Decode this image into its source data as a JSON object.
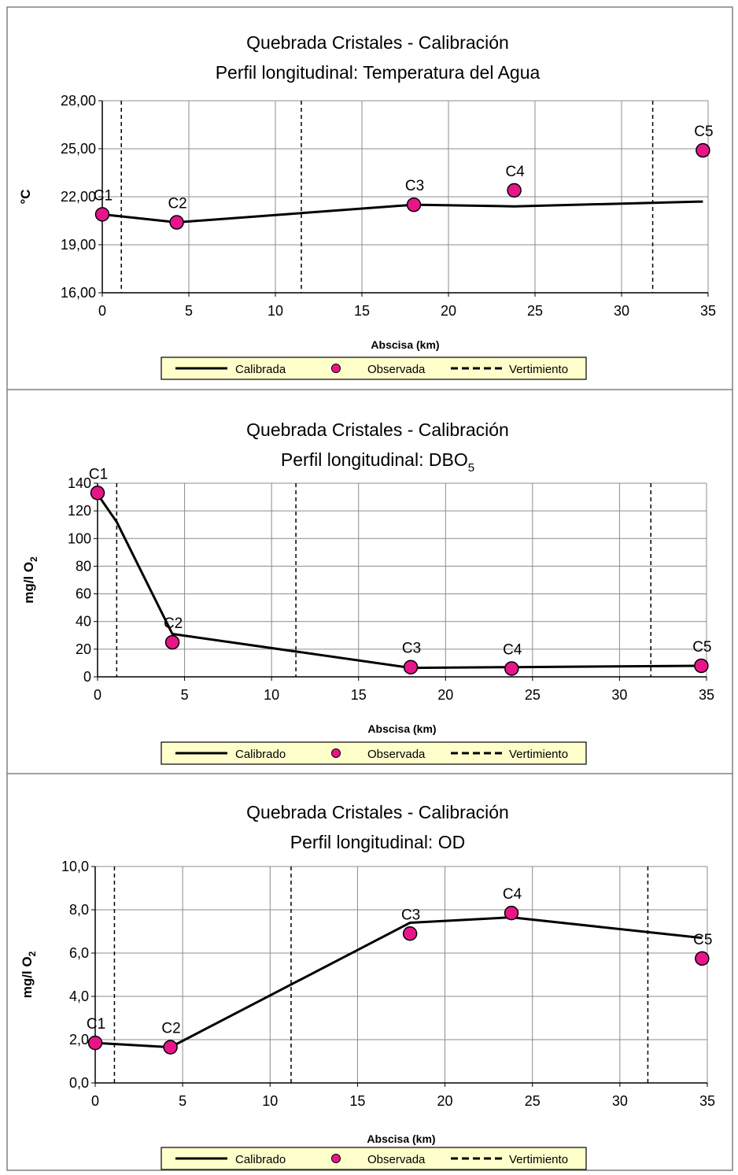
{
  "chart_data": [
    {
      "type": "line",
      "title": "Quebrada Cristales - Calibración",
      "subtitle": "Perfil longitudinal: Temperatura del Agua",
      "subtitle_sub": "",
      "xlabel": "Abscisa  (km)",
      "ylabel": "°C",
      "ylabel_sub": "",
      "xlim": [
        0,
        35
      ],
      "ylim": [
        16,
        28
      ],
      "xticks": [
        0,
        5,
        10,
        15,
        20,
        25,
        30,
        35
      ],
      "xtick_labels": [
        "0",
        "5",
        "10",
        "15",
        "20",
        "25",
        "30",
        "35"
      ],
      "yticks": [
        16,
        19,
        22,
        25,
        28
      ],
      "ytick_labels": [
        "16,00",
        "19,00",
        "22,00",
        "25,00",
        "28,00"
      ],
      "grid": true,
      "legend_position": "bottom",
      "series": [
        {
          "name": "Calibrada",
          "kind": "line",
          "color": "#000000",
          "x": [
            0,
            4.3,
            18,
            23.8,
            34.7
          ],
          "y": [
            20.9,
            20.4,
            21.5,
            21.4,
            21.7
          ]
        },
        {
          "name": "Observada",
          "kind": "scatter",
          "color": "#e8158a",
          "x": [
            0,
            4.3,
            18,
            23.8,
            34.7
          ],
          "y": [
            20.9,
            20.4,
            21.5,
            22.4,
            24.9
          ],
          "labels": [
            "C1",
            "C2",
            "C3",
            "C4",
            "C5"
          ]
        },
        {
          "name": "Vertimiento",
          "kind": "vline",
          "color": "#000000",
          "x": [
            1.1,
            11.5,
            31.8
          ]
        }
      ]
    },
    {
      "type": "line",
      "title": "Quebrada Cristales - Calibración",
      "subtitle": "Perfil longitudinal: DBO",
      "subtitle_sub": "5",
      "xlabel": "Abscisa  (km)",
      "ylabel": "mg/l O",
      "ylabel_sub": "2",
      "xlim": [
        0,
        35
      ],
      "ylim": [
        0,
        140
      ],
      "xticks": [
        0,
        5,
        10,
        15,
        20,
        25,
        30,
        35
      ],
      "xtick_labels": [
        "0",
        "5",
        "10",
        "15",
        "20",
        "25",
        "30",
        "35"
      ],
      "yticks": [
        0,
        20,
        40,
        60,
        80,
        100,
        120,
        140
      ],
      "ytick_labels": [
        "0",
        "20",
        "40",
        "60",
        "80",
        "100",
        "120",
        "140"
      ],
      "grid": true,
      "legend_position": "bottom",
      "series": [
        {
          "name": "Calibrado",
          "kind": "line",
          "color": "#000000",
          "x": [
            0,
            1.1,
            4.3,
            18,
            23.8,
            34.7
          ],
          "y": [
            132,
            112,
            31,
            6.5,
            7,
            8
          ]
        },
        {
          "name": "Observada",
          "kind": "scatter",
          "color": "#e8158a",
          "x": [
            0,
            4.3,
            18,
            23.8,
            34.7
          ],
          "y": [
            133,
            25,
            7,
            6,
            8
          ],
          "labels": [
            "C1",
            "C2",
            "C3",
            "C4",
            "C5"
          ]
        },
        {
          "name": "Vertimiento",
          "kind": "vline",
          "color": "#000000",
          "x": [
            1.1,
            11.4,
            31.8
          ]
        }
      ]
    },
    {
      "type": "line",
      "title": "Quebrada Cristales - Calibración",
      "subtitle": "Perfil longitudinal: OD",
      "subtitle_sub": "",
      "xlabel": "Abscisa  (km)",
      "ylabel": "mg/l O",
      "ylabel_sub": "2",
      "xlim": [
        0,
        35
      ],
      "ylim": [
        0,
        10
      ],
      "xticks": [
        0,
        5,
        10,
        15,
        20,
        25,
        30,
        35
      ],
      "xtick_labels": [
        "0",
        "5",
        "10",
        "15",
        "20",
        "25",
        "30",
        "35"
      ],
      "yticks": [
        0,
        2,
        4,
        6,
        8,
        10
      ],
      "ytick_labels": [
        "0,0",
        "2,0",
        "4,0",
        "6,0",
        "8,0",
        "10,0"
      ],
      "grid": true,
      "legend_position": "bottom",
      "series": [
        {
          "name": "Calibrado",
          "kind": "line",
          "color": "#000000",
          "x": [
            0,
            4.3,
            18,
            23.8,
            34.7
          ],
          "y": [
            1.85,
            1.65,
            7.4,
            7.65,
            6.7
          ]
        },
        {
          "name": "Observada",
          "kind": "scatter",
          "color": "#e8158a",
          "x": [
            0,
            4.3,
            18,
            23.8,
            34.7
          ],
          "y": [
            1.85,
            1.65,
            6.9,
            7.85,
            5.75
          ],
          "labels": [
            "C1",
            "C2",
            "C3",
            "C4",
            "C5"
          ]
        },
        {
          "name": "Vertimiento",
          "kind": "vline",
          "color": "#000000",
          "x": [
            1.1,
            11.2,
            31.6
          ]
        }
      ]
    }
  ]
}
